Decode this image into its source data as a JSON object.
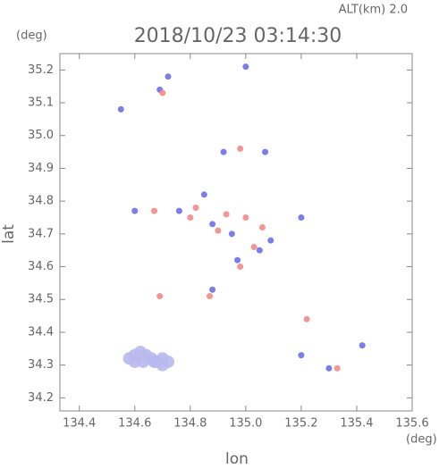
{
  "chart_data": {
    "type": "scatter",
    "title": "2018/10/23 03:14:30",
    "subtitle": "ALT(km) 2.0",
    "x_label": "lon",
    "y_label": "lat",
    "x_unit": "(deg)",
    "y_unit": "(deg)",
    "xlim": [
      134.33,
      135.6
    ],
    "ylim": [
      34.16,
      35.25
    ],
    "xticks": [
      134.4,
      134.6,
      134.8,
      {
        "value": 135,
        "label": "135.0"
      },
      135.2,
      135.4,
      135.6
    ],
    "yticks": [
      34.2,
      34.3,
      34.4,
      34.5,
      34.6,
      34.7,
      34.8,
      34.9,
      {
        "value": 35,
        "label": "35.0"
      },
      35.1,
      35.2
    ],
    "series": [
      {
        "color": "#b9b9ee",
        "x": [
          134.58,
          134.6,
          134.62,
          134.64,
          134.66,
          134.68,
          134.7,
          134.72,
          134.6,
          134.63,
          134.67,
          134.7
        ],
        "y": [
          34.32,
          34.33,
          34.34,
          34.33,
          34.32,
          34.31,
          34.32,
          34.31,
          34.31,
          34.31,
          34.31,
          34.3
        ]
      },
      {
        "color": "#6f6fe8",
        "x": [
          134.55,
          134.69,
          134.72,
          134.6,
          134.76,
          134.85,
          134.88,
          134.95,
          135.05,
          135.09,
          135.2,
          135.2,
          135.42,
          135.3,
          134.88,
          134.97,
          134.92,
          135.07,
          135.0
        ],
        "y": [
          35.08,
          35.14,
          35.18,
          34.77,
          34.77,
          34.82,
          34.73,
          34.7,
          34.65,
          34.68,
          34.75,
          34.33,
          34.36,
          34.29,
          34.53,
          34.62,
          34.95,
          34.95,
          35.21
        ]
      },
      {
        "color": "#f08a8a",
        "x": [
          134.7,
          134.67,
          134.82,
          134.8,
          134.93,
          135.0,
          135.03,
          134.98,
          134.87,
          134.69,
          135.22,
          135.33,
          134.98,
          134.9,
          135.06
        ],
        "y": [
          35.13,
          34.77,
          34.78,
          34.75,
          34.76,
          34.75,
          34.66,
          34.6,
          34.51,
          34.51,
          34.44,
          34.29,
          34.96,
          34.71,
          34.72
        ]
      }
    ]
  }
}
